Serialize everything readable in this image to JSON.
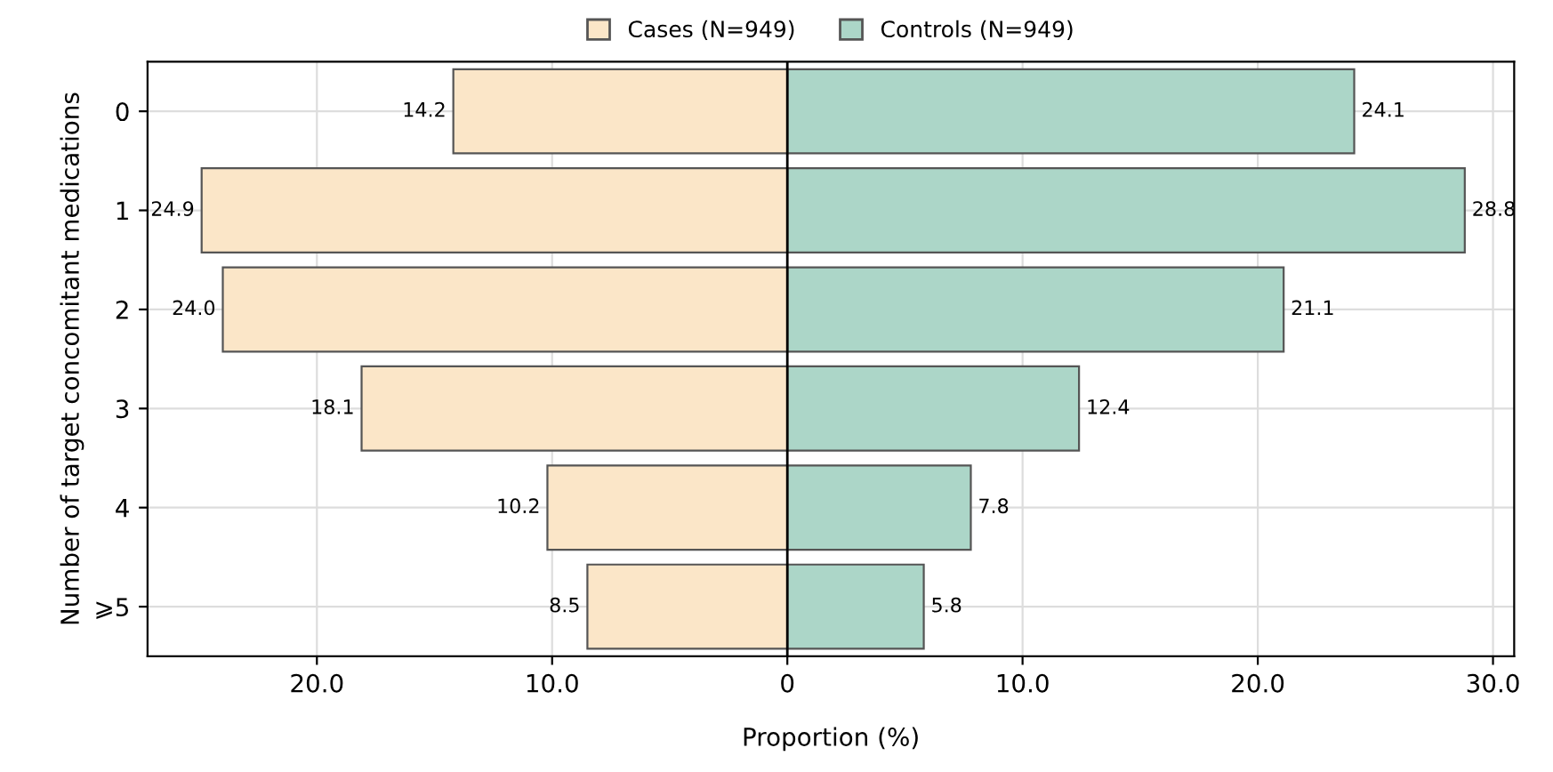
{
  "chart_data": {
    "type": "bar",
    "orientation": "horizontal",
    "ylabel": "Number of target concomitant medications",
    "xlabel": "Proportion (%)",
    "categories": [
      "0",
      "1",
      "2",
      "3",
      "4",
      "⩾5"
    ],
    "series": [
      {
        "name": "Cases (N=949)",
        "color": "#fbe6c8",
        "base": [
          -14.2,
          -24.9,
          -24.0,
          -18.1,
          -10.2,
          -8.5
        ],
        "values": [
          14.2,
          24.9,
          24.0,
          18.1,
          10.2,
          8.5
        ],
        "value_labels": [
          "14.2",
          "24.9",
          "24.0",
          "18.1",
          "10.2",
          "8.5"
        ]
      },
      {
        "name": "Controls (N=949)",
        "color": "#acd6c8",
        "values": [
          24.1,
          28.8,
          21.1,
          12.4,
          7.8,
          5.8
        ],
        "value_labels": [
          "24.1",
          "28.8",
          "21.1",
          "12.4",
          "7.8",
          "5.8"
        ]
      }
    ],
    "xlim": [
      -27.2,
      30.9
    ],
    "xticks": [
      {
        "value": -20,
        "label": "20.0"
      },
      {
        "value": -10,
        "label": "10.0"
      },
      0,
      {
        "value": 10,
        "label": "10.0"
      },
      {
        "value": 20,
        "label": "20.0"
      },
      {
        "value": 30,
        "label": "30.0"
      }
    ],
    "ref_lines": [
      {
        "axis": "x",
        "value": 0,
        "color": "#000000"
      }
    ],
    "grid": true,
    "legend": "top"
  }
}
